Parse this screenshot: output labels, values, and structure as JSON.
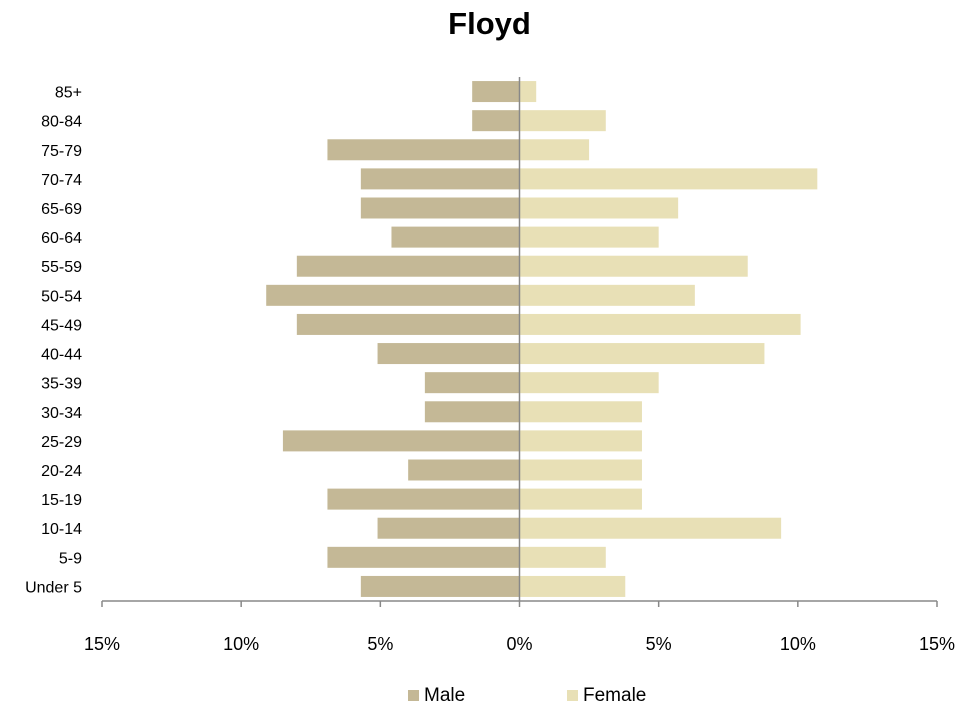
{
  "chart_data": {
    "type": "bar",
    "orientation": "horizontal",
    "title": "Floyd",
    "categories": [
      "Under 5",
      "5-9",
      "10-14",
      "15-19",
      "20-24",
      "25-29",
      "30-34",
      "35-39",
      "40-44",
      "45-49",
      "50-54",
      "55-59",
      "60-64",
      "65-69",
      "70-74",
      "75-79",
      "80-84",
      "85+"
    ],
    "series": [
      {
        "name": "Male",
        "color": "#c4b896",
        "values": [
          -5.7,
          -6.9,
          -5.1,
          -6.9,
          -4.0,
          -8.5,
          -3.4,
          -3.4,
          -5.1,
          -8.0,
          -9.1,
          -8.0,
          -4.6,
          -5.7,
          -5.7,
          -6.9,
          -1.7,
          -1.7
        ]
      },
      {
        "name": "Female",
        "color": "#e8e0b6",
        "values": [
          3.8,
          3.1,
          9.4,
          4.4,
          4.4,
          4.4,
          4.4,
          5.0,
          8.8,
          10.1,
          6.3,
          8.2,
          5.0,
          5.7,
          10.7,
          2.5,
          3.1,
          0.6
        ]
      }
    ],
    "xlim": [
      -15,
      15
    ],
    "xticks": [
      "15%",
      "10%",
      "5%",
      "0%",
      "5%",
      "10%",
      "15%"
    ],
    "xtick_values": [
      -15,
      -10,
      -5,
      0,
      5,
      10,
      15
    ],
    "legend_position": "bottom",
    "grid": false
  }
}
